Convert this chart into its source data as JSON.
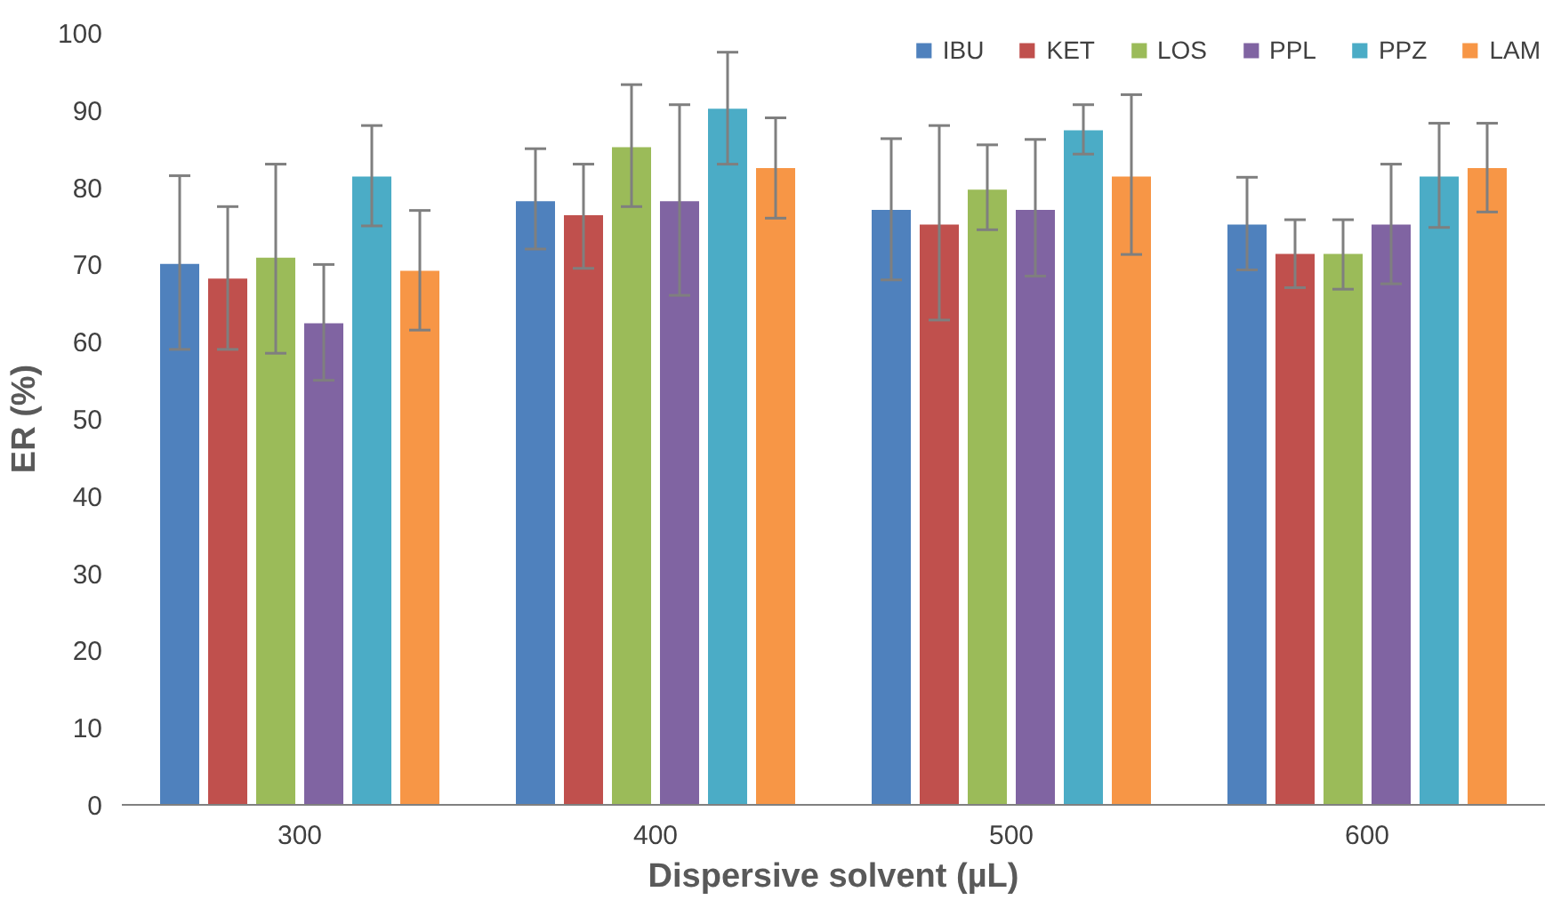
{
  "chart_data": {
    "type": "bar",
    "xlabel": "Dispersive solvent (µL)",
    "ylabel": "ER (%)",
    "categories": [
      "300",
      "400",
      "500",
      "600"
    ],
    "ylim": [
      0,
      100
    ],
    "yticks": [
      0,
      10,
      20,
      30,
      40,
      50,
      60,
      70,
      80,
      90,
      100
    ],
    "grid": false,
    "legend": "top right",
    "series": [
      {
        "name": "IBU",
        "color": "#4f81bd",
        "values": [
          70.2,
          78.3,
          77.2,
          75.3
        ],
        "errors": [
          [
            59,
            81.5
          ],
          [
            72,
            85
          ],
          [
            68,
            86.3
          ],
          [
            69.3,
            81.3
          ]
        ]
      },
      {
        "name": "KET",
        "color": "#c0504d",
        "values": [
          68.3,
          76.5,
          75.3,
          71.5
        ],
        "errors": [
          [
            59,
            77.5
          ],
          [
            69.5,
            83
          ],
          [
            62.8,
            88
          ],
          [
            67,
            75.8
          ]
        ]
      },
      {
        "name": "LOS",
        "color": "#9bbb59",
        "values": [
          71,
          85.3,
          79.8,
          71.5
        ],
        "errors": [
          [
            58.5,
            83
          ],
          [
            77.5,
            93.3
          ],
          [
            74.5,
            85.5
          ],
          [
            66.8,
            75.8
          ]
        ]
      },
      {
        "name": "PPL",
        "color": "#8064a2",
        "values": [
          62.5,
          78.3,
          77.2,
          75.3
        ],
        "errors": [
          [
            55,
            70
          ],
          [
            66,
            90.7
          ],
          [
            68.5,
            86.2
          ],
          [
            67.5,
            83
          ]
        ]
      },
      {
        "name": "PPZ",
        "color": "#4bacc6",
        "values": [
          81.5,
          90.3,
          87.5,
          81.5
        ],
        "errors": [
          [
            75,
            88
          ],
          [
            83,
            97.5
          ],
          [
            84.3,
            90.7
          ],
          [
            74.8,
            88.3
          ]
        ]
      },
      {
        "name": "LAM",
        "color": "#f79646",
        "values": [
          69.3,
          82.6,
          81.5,
          82.6
        ],
        "errors": [
          [
            61.5,
            77
          ],
          [
            76,
            89
          ],
          [
            71.3,
            92
          ],
          [
            76.8,
            88.3
          ]
        ]
      }
    ]
  }
}
